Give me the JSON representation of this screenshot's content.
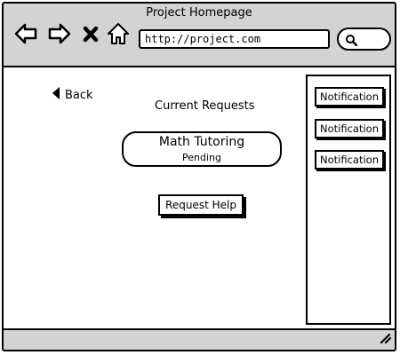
{
  "window": {
    "title": "Project Homepage"
  },
  "toolbar": {
    "back_icon": "arrow-left-icon",
    "forward_icon": "arrow-right-icon",
    "stop_icon": "close-icon",
    "home_icon": "home-icon"
  },
  "address_bar": {
    "url": "http://project.com"
  },
  "search": {
    "icon": "search-icon"
  },
  "page": {
    "back_label": "Back",
    "heading": "Current Requests",
    "request": {
      "title": "Math Tutoring",
      "status": "Pending"
    },
    "help_button": "Request Help"
  },
  "notifications": [
    {
      "label": "Notification"
    },
    {
      "label": "Notification"
    },
    {
      "label": "Notification"
    }
  ],
  "colors": {
    "chrome": "#d3d3d3",
    "outline": "#000000",
    "background": "#ffffff"
  }
}
